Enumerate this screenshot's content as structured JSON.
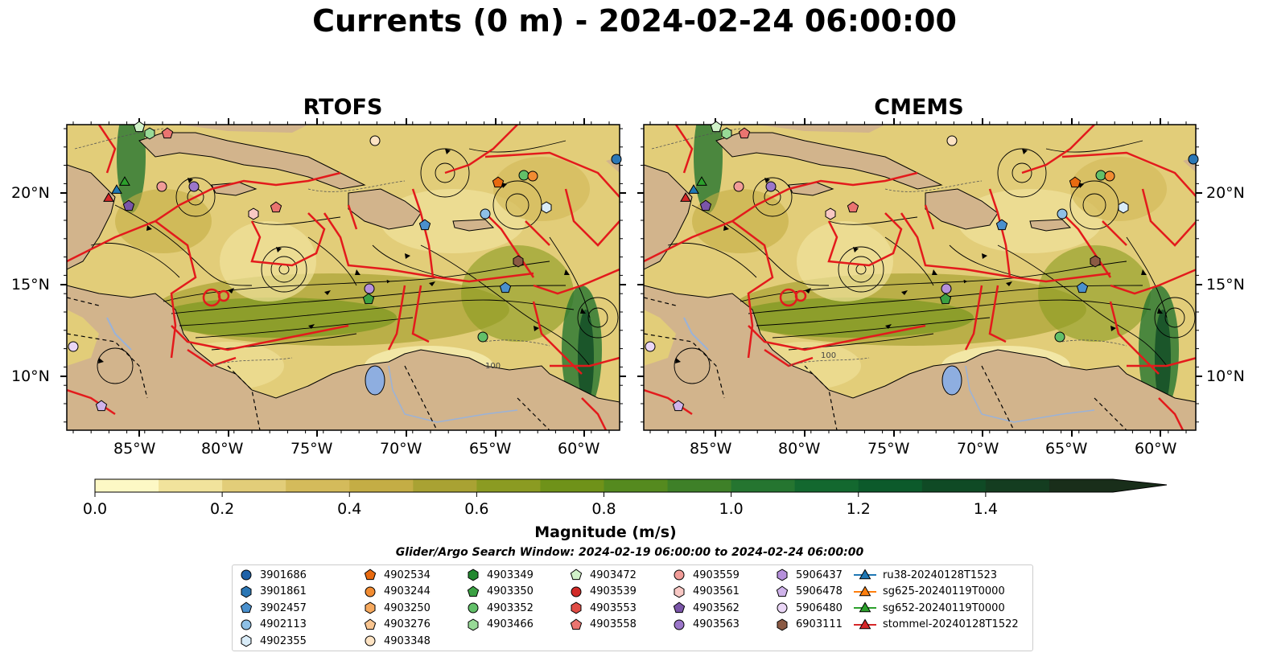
{
  "title": "Currents (0 m) - 2024-02-24 06:00:00",
  "panels": [
    {
      "name": "RTOFS"
    },
    {
      "name": "CMEMS"
    }
  ],
  "latitude_labels": [
    "20°N",
    "15°N",
    "10°N"
  ],
  "longitude_labels": [
    "85°W",
    "80°W",
    "75°W",
    "70°W",
    "65°W",
    "60°W"
  ],
  "contour_label": "100",
  "colorbar": {
    "label": "Magnitude (m/s)",
    "ticks": [
      "0.0",
      "0.2",
      "0.4",
      "0.6",
      "0.8",
      "1.0",
      "1.2",
      "1.4"
    ],
    "min": 0.0,
    "max": 1.6,
    "extend": "max",
    "colors": [
      "#fdf8c5",
      "#f1e39c",
      "#e2cd79",
      "#d4bb5b",
      "#c4ad45",
      "#a9a233",
      "#8b9b22",
      "#6f9219",
      "#558a1f",
      "#3e8028",
      "#257530",
      "#13682f",
      "#0c5a2b",
      "#0f4a25",
      "#143d20",
      "#192e1a"
    ]
  },
  "search_window": "Glider/Argo Search Window: 2024-02-19 06:00:00 to 2024-02-24 06:00:00",
  "legend": [
    {
      "label": "3901686",
      "marker": "circle",
      "color": "#1f62a8"
    },
    {
      "label": "3901861",
      "marker": "hexagon",
      "color": "#2b77b5"
    },
    {
      "label": "3902457",
      "marker": "pentagon",
      "color": "#4a90cd"
    },
    {
      "label": "4902113",
      "marker": "circle",
      "color": "#8ec0e6"
    },
    {
      "label": "4902355",
      "marker": "hexagon",
      "color": "#d9ecf8"
    },
    {
      "label": "4902534",
      "marker": "pentagon",
      "color": "#e86a10"
    },
    {
      "label": "4903244",
      "marker": "circle",
      "color": "#f28c32"
    },
    {
      "label": "4903250",
      "marker": "hexagon",
      "color": "#f6a95e"
    },
    {
      "label": "4903276",
      "marker": "pentagon",
      "color": "#f9c590"
    },
    {
      "label": "4903348",
      "marker": "circle",
      "color": "#fde3c3"
    },
    {
      "label": "4903349",
      "marker": "hexagon",
      "color": "#22882f"
    },
    {
      "label": "4903350",
      "marker": "pentagon",
      "color": "#3ba143"
    },
    {
      "label": "4903352",
      "marker": "circle",
      "color": "#62c069"
    },
    {
      "label": "4903466",
      "marker": "hexagon",
      "color": "#98da97"
    },
    {
      "label": "4903472",
      "marker": "pentagon",
      "color": "#d1f2c9"
    },
    {
      "label": "4903539",
      "marker": "circle",
      "color": "#d22b28"
    },
    {
      "label": "4903553",
      "marker": "hexagon",
      "color": "#e04c45"
    },
    {
      "label": "4903558",
      "marker": "pentagon",
      "color": "#ea7470"
    },
    {
      "label": "4903559",
      "marker": "circle",
      "color": "#f19c98"
    },
    {
      "label": "4903561",
      "marker": "hexagon",
      "color": "#f8c8c4"
    },
    {
      "label": "4903562",
      "marker": "pentagon",
      "color": "#7a55a8"
    },
    {
      "label": "4903563",
      "marker": "circle",
      "color": "#9b76c9"
    },
    {
      "label": "5906437",
      "marker": "hexagon",
      "color": "#b690dc"
    },
    {
      "label": "5906478",
      "marker": "pentagon",
      "color": "#cfb3ea"
    },
    {
      "label": "5906480",
      "marker": "circle",
      "color": "#ead6f6"
    },
    {
      "label": "6903111",
      "marker": "hexagon",
      "color": "#8b5a44"
    },
    {
      "label": "ru38-20240128T1523",
      "marker": "triangle-line",
      "color": "#1f77b4"
    },
    {
      "label": "sg625-20240119T0000",
      "marker": "triangle-line",
      "color": "#ff7f0e"
    },
    {
      "label": "sg652-20240119T0000",
      "marker": "triangle-line",
      "color": "#2ca02c"
    },
    {
      "label": "stommel-20240128T1522",
      "marker": "triangle-line",
      "color": "#d62728"
    }
  ]
}
